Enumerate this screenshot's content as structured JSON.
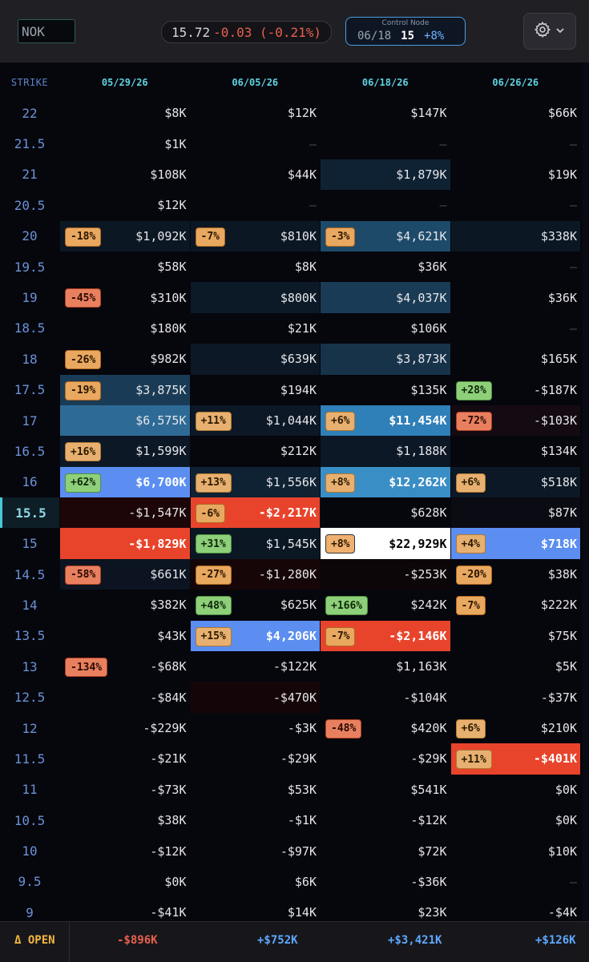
{
  "ticker": "NOK",
  "price": {
    "last": "15.72",
    "change": "-0.03 (-0.21%)"
  },
  "control_node": {
    "label": "Control Node",
    "date": "06/18",
    "strike": "15",
    "pct": "+8%"
  },
  "settings": {
    "icon": "gear-icon",
    "caret": "chevron-down-icon"
  },
  "header": {
    "strike_label": "STRIKE",
    "dates": [
      "05/29/26",
      "06/05/26",
      "06/18/26",
      "06/26/26"
    ]
  },
  "current_strike": "15.5",
  "colors": {
    "accent": "#4d9be0",
    "negative": "#e8442c",
    "positive": "#5b8ef0",
    "open_label": "#f2b640"
  },
  "rows": [
    {
      "strike": "22",
      "cells": [
        {
          "v": "$8K"
        },
        {
          "v": "$12K"
        },
        {
          "v": "$147K"
        },
        {
          "v": "$66K"
        }
      ]
    },
    {
      "strike": "21.5",
      "cells": [
        {
          "v": "$1K"
        },
        {
          "v": "–"
        },
        {
          "v": "–"
        },
        {
          "v": "–"
        }
      ]
    },
    {
      "strike": "21",
      "cells": [
        {
          "v": "$108K"
        },
        {
          "v": "$44K"
        },
        {
          "v": "$1,879K"
        },
        {
          "v": "$19K"
        }
      ]
    },
    {
      "strike": "20.5",
      "cells": [
        {
          "v": "$12K"
        },
        {
          "v": "–"
        },
        {
          "v": "–"
        },
        {
          "v": "–"
        }
      ]
    },
    {
      "strike": "20",
      "cells": [
        {
          "v": "$1,092K",
          "b": "-18%"
        },
        {
          "v": "$810K",
          "b": "-7%"
        },
        {
          "v": "$4,621K",
          "b": "-3%"
        },
        {
          "v": "$338K"
        }
      ]
    },
    {
      "strike": "19.5",
      "cells": [
        {
          "v": "$58K"
        },
        {
          "v": "$8K"
        },
        {
          "v": "$36K"
        },
        {
          "v": "–"
        }
      ]
    },
    {
      "strike": "19",
      "cells": [
        {
          "v": "$310K",
          "b": "-45%"
        },
        {
          "v": "$800K"
        },
        {
          "v": "$4,037K"
        },
        {
          "v": "$36K"
        }
      ]
    },
    {
      "strike": "18.5",
      "cells": [
        {
          "v": "$180K"
        },
        {
          "v": "$21K"
        },
        {
          "v": "$106K"
        },
        {
          "v": "–"
        }
      ]
    },
    {
      "strike": "18",
      "cells": [
        {
          "v": "$982K",
          "b": "-26%"
        },
        {
          "v": "$639K"
        },
        {
          "v": "$3,873K"
        },
        {
          "v": "$165K"
        }
      ]
    },
    {
      "strike": "17.5",
      "cells": [
        {
          "v": "$3,875K",
          "b": "-19%"
        },
        {
          "v": "$194K"
        },
        {
          "v": "$135K"
        },
        {
          "v": "-$187K",
          "b": "+28%"
        }
      ]
    },
    {
      "strike": "17",
      "cells": [
        {
          "v": "$6,575K"
        },
        {
          "v": "$1,044K",
          "b": "+11%"
        },
        {
          "v": "$11,454K",
          "b": "+6%"
        },
        {
          "v": "-$103K",
          "b": "-72%"
        }
      ]
    },
    {
      "strike": "16.5",
      "cells": [
        {
          "v": "$1,599K",
          "b": "+16%"
        },
        {
          "v": "$212K"
        },
        {
          "v": "$1,188K"
        },
        {
          "v": "$134K"
        }
      ]
    },
    {
      "strike": "16",
      "cells": [
        {
          "v": "$6,700K",
          "b": "+62%"
        },
        {
          "v": "$1,556K",
          "b": "+13%"
        },
        {
          "v": "$12,262K",
          "b": "+8%"
        },
        {
          "v": "$518K",
          "b": "+6%"
        }
      ]
    },
    {
      "strike": "15.5",
      "cells": [
        {
          "v": "-$1,547K"
        },
        {
          "v": "-$2,217K",
          "b": "-6%"
        },
        {
          "v": "$628K"
        },
        {
          "v": "$87K"
        }
      ]
    },
    {
      "strike": "15",
      "cells": [
        {
          "v": "-$1,829K"
        },
        {
          "v": "$1,545K",
          "b": "+31%"
        },
        {
          "v": "$22,929K",
          "b": "+8%"
        },
        {
          "v": "$718K",
          "b": "+4%"
        }
      ]
    },
    {
      "strike": "14.5",
      "cells": [
        {
          "v": "$661K",
          "b": "-58%"
        },
        {
          "v": "-$1,280K",
          "b": "-27%"
        },
        {
          "v": "-$253K"
        },
        {
          "v": "$38K",
          "b": "-20%"
        }
      ]
    },
    {
      "strike": "14",
      "cells": [
        {
          "v": "$382K"
        },
        {
          "v": "$625K",
          "b": "+48%"
        },
        {
          "v": "$242K",
          "b": "+166%"
        },
        {
          "v": "$222K",
          "b": "-7%"
        }
      ]
    },
    {
      "strike": "13.5",
      "cells": [
        {
          "v": "$43K"
        },
        {
          "v": "$4,206K",
          "b": "+15%"
        },
        {
          "v": "-$2,146K",
          "b": "-7%"
        },
        {
          "v": "$75K"
        }
      ]
    },
    {
      "strike": "13",
      "cells": [
        {
          "v": "-$68K",
          "b": "-134%"
        },
        {
          "v": "-$122K"
        },
        {
          "v": "$1,163K"
        },
        {
          "v": "$5K"
        }
      ]
    },
    {
      "strike": "12.5",
      "cells": [
        {
          "v": "-$84K"
        },
        {
          "v": "-$470K"
        },
        {
          "v": "-$104K"
        },
        {
          "v": "-$37K"
        }
      ]
    },
    {
      "strike": "12",
      "cells": [
        {
          "v": "-$229K"
        },
        {
          "v": "-$3K"
        },
        {
          "v": "$420K",
          "b": "-48%"
        },
        {
          "v": "$210K",
          "b": "+6%"
        }
      ]
    },
    {
      "strike": "11.5",
      "cells": [
        {
          "v": "-$21K"
        },
        {
          "v": "-$29K"
        },
        {
          "v": "-$29K"
        },
        {
          "v": "-$401K",
          "b": "+11%"
        }
      ]
    },
    {
      "strike": "11",
      "cells": [
        {
          "v": "-$73K"
        },
        {
          "v": "$53K"
        },
        {
          "v": "$541K"
        },
        {
          "v": "$0K"
        }
      ]
    },
    {
      "strike": "10.5",
      "cells": [
        {
          "v": "$38K"
        },
        {
          "v": "-$1K"
        },
        {
          "v": "-$12K"
        },
        {
          "v": "$0K"
        }
      ]
    },
    {
      "strike": "10",
      "cells": [
        {
          "v": "-$12K"
        },
        {
          "v": "-$97K"
        },
        {
          "v": "$72K"
        },
        {
          "v": "$10K"
        }
      ]
    },
    {
      "strike": "9.5",
      "cells": [
        {
          "v": "$0K"
        },
        {
          "v": "$6K"
        },
        {
          "v": "-$36K"
        },
        {
          "v": "–"
        }
      ]
    },
    {
      "strike": "9",
      "cells": [
        {
          "v": "-$41K"
        },
        {
          "v": "$14K"
        },
        {
          "v": "$23K"
        },
        {
          "v": "-$4K"
        }
      ]
    }
  ],
  "footer": {
    "label": "Δ OPEN",
    "totals": [
      "-$896K",
      "+$752K",
      "+$3,421K",
      "+$126K"
    ]
  }
}
